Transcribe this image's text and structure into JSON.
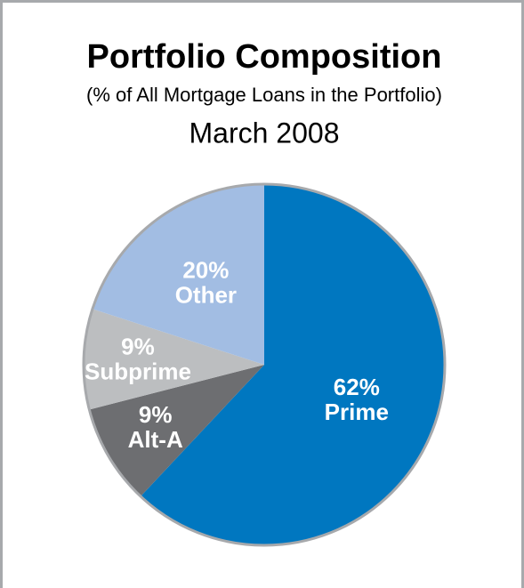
{
  "chart_data": {
    "type": "pie",
    "title": "Portfolio Composition",
    "subtitle": "(% of All Mortgage Loans in the Portfolio)",
    "date": "March 2008",
    "categories": [
      "Prime",
      "Alt-A",
      "Subprime",
      "Other"
    ],
    "values": [
      62,
      9,
      9,
      20
    ],
    "value_labels": [
      "62%",
      "9%",
      "9%",
      "20%"
    ],
    "colors": [
      "#0077c0",
      "#6d6e71",
      "#bcbec0",
      "#a2bde3"
    ]
  }
}
